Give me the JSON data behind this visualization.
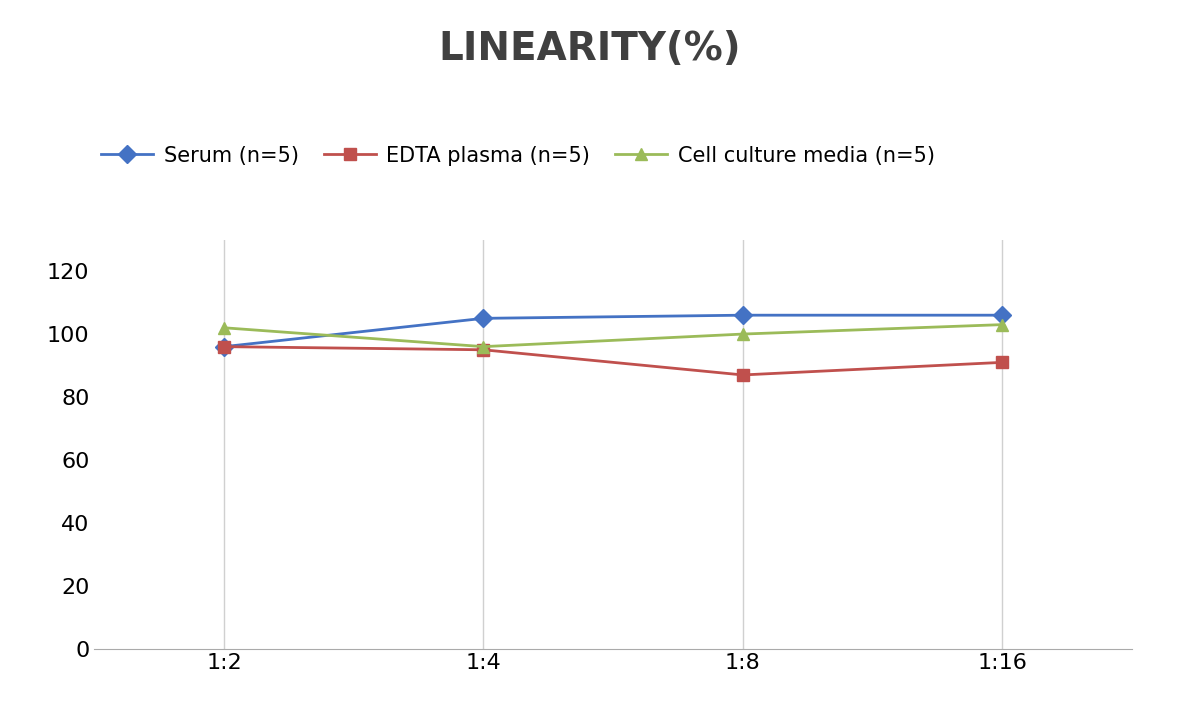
{
  "title": "LINEARITY(%)",
  "x_labels": [
    "1:2",
    "1:4",
    "1:8",
    "1:16"
  ],
  "x_positions": [
    0,
    1,
    2,
    3
  ],
  "series": [
    {
      "name": "Serum (n=5)",
      "values": [
        96,
        105,
        106,
        106
      ],
      "color": "#4472C4",
      "marker": "D",
      "marker_size": 9,
      "linewidth": 2
    },
    {
      "name": "EDTA plasma (n=5)",
      "values": [
        96,
        95,
        87,
        91
      ],
      "color": "#C0504D",
      "marker": "s",
      "marker_size": 8,
      "linewidth": 2
    },
    {
      "name": "Cell culture media (n=5)",
      "values": [
        102,
        96,
        100,
        103
      ],
      "color": "#9BBB59",
      "marker": "^",
      "marker_size": 9,
      "linewidth": 2
    }
  ],
  "ylim": [
    0,
    130
  ],
  "yticks": [
    0,
    20,
    40,
    60,
    80,
    100,
    120
  ],
  "ylabel": "",
  "xlabel": "",
  "title_fontsize": 28,
  "title_color": "#404040",
  "tick_fontsize": 16,
  "legend_fontsize": 15,
  "background_color": "#ffffff",
  "grid_color": "#d0d0d0",
  "grid_vertical": true
}
